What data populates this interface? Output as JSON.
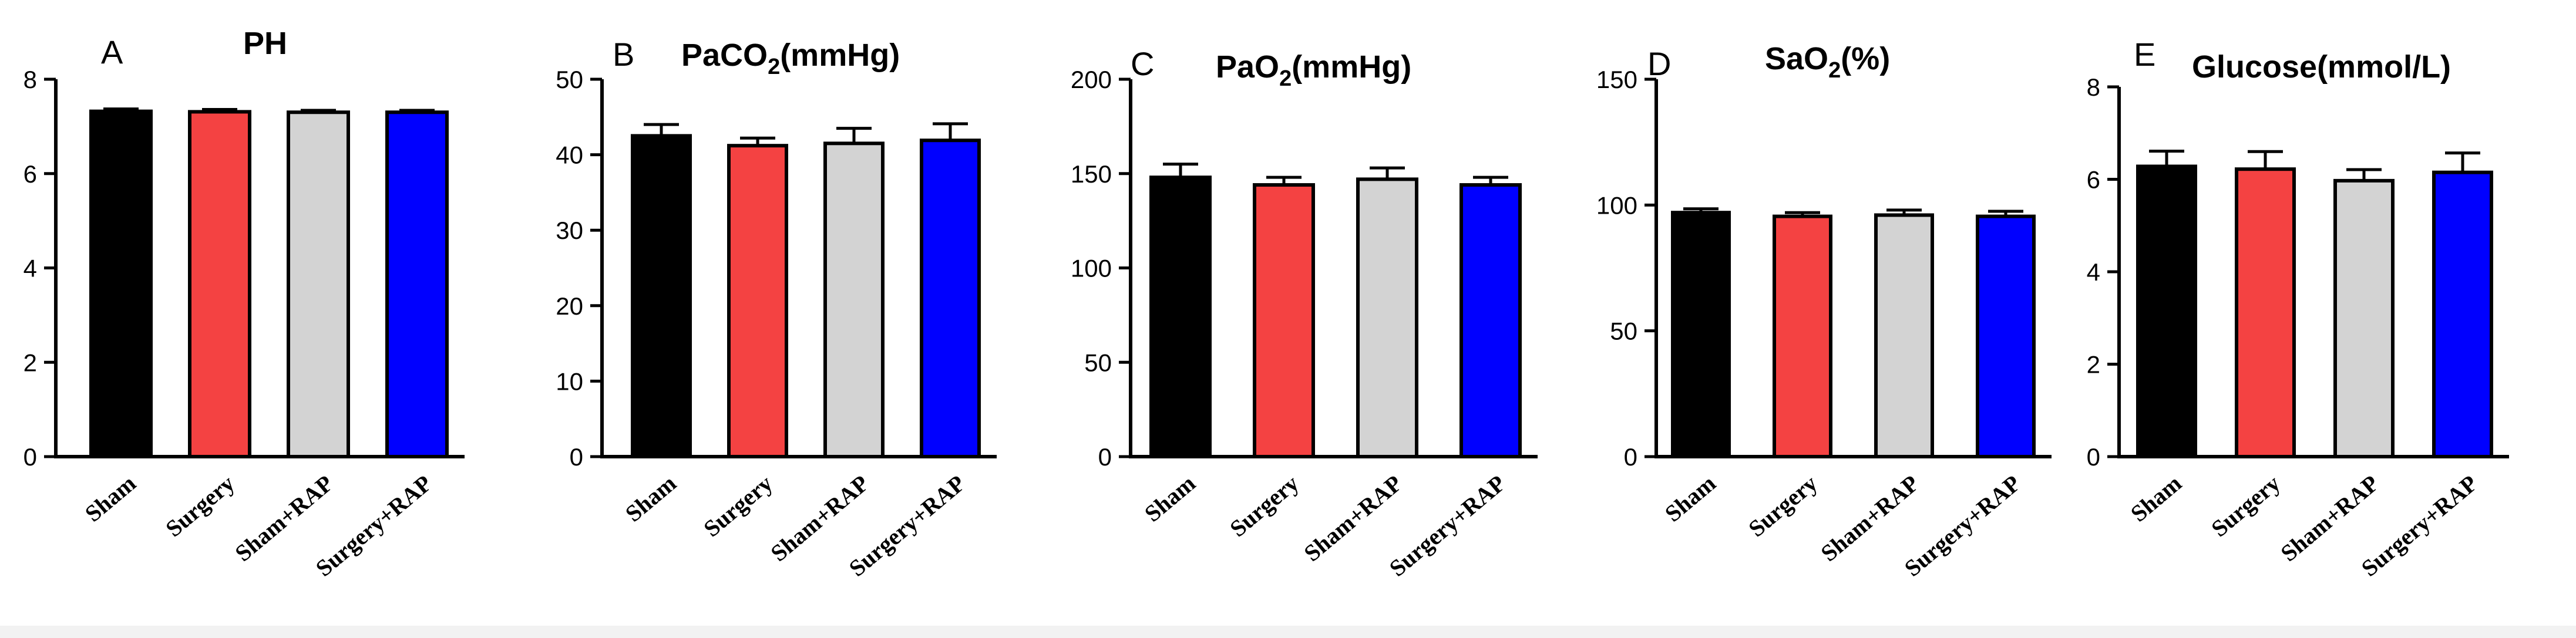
{
  "bar_colors": [
    "#000000",
    "#f44242",
    "#d3d3d3",
    "#0000ff"
  ],
  "chart_data": [
    {
      "type": "bar",
      "letter": "A",
      "title": "PH",
      "title_sub": "",
      "title_suffix": "",
      "categories": [
        "Sham",
        "Surgery",
        "Sham+RAP",
        "Surgery+RAP"
      ],
      "values": [
        7.32,
        7.31,
        7.3,
        7.3
      ],
      "errors": [
        0.05,
        0.05,
        0.04,
        0.04
      ],
      "ylim": [
        0,
        8
      ],
      "yticks": [
        0,
        2,
        4,
        6,
        8
      ],
      "xlabel": "",
      "ylabel": ""
    },
    {
      "type": "bar",
      "letter": "B",
      "title": "PaCO",
      "title_sub": "2",
      "title_suffix": "(mmHg)",
      "categories": [
        "Sham",
        "Surgery",
        "Sham+RAP",
        "Surgery+RAP"
      ],
      "values": [
        42.5,
        41.2,
        41.5,
        41.9
      ],
      "errors": [
        1.5,
        1.0,
        2.0,
        2.2
      ],
      "ylim": [
        0,
        50
      ],
      "yticks": [
        0,
        10,
        20,
        30,
        40,
        50
      ],
      "xlabel": "",
      "ylabel": ""
    },
    {
      "type": "bar",
      "letter": "C",
      "title": "PaO",
      "title_sub": "2",
      "title_suffix": "(mmHg)",
      "categories": [
        "Sham",
        "Surgery",
        "Sham+RAP",
        "Surgery+RAP"
      ],
      "values": [
        148,
        144,
        147,
        144
      ],
      "errors": [
        7,
        4,
        6,
        4
      ],
      "ylim": [
        0,
        200
      ],
      "yticks": [
        0,
        50,
        100,
        150,
        200
      ],
      "xlabel": "",
      "ylabel": ""
    },
    {
      "type": "bar",
      "letter": "D",
      "title": "SaO",
      "title_sub": "2",
      "title_suffix": "(%)",
      "categories": [
        "Sham",
        "Surgery",
        "Sham+RAP",
        "Surgery+RAP"
      ],
      "values": [
        97,
        95.5,
        96,
        95.5
      ],
      "errors": [
        1.5,
        1.5,
        2,
        2
      ],
      "ylim": [
        0,
        150
      ],
      "yticks": [
        0,
        50,
        100,
        150
      ],
      "xlabel": "",
      "ylabel": ""
    },
    {
      "type": "bar",
      "letter": "E",
      "title": "Glucose(mmol/L)",
      "title_sub": "",
      "title_suffix": "",
      "categories": [
        "Sham",
        "Surgery",
        "Sham+RAP",
        "Surgery+RAP"
      ],
      "values": [
        6.28,
        6.22,
        5.97,
        6.15
      ],
      "errors": [
        0.33,
        0.38,
        0.24,
        0.42
      ],
      "ylim": [
        0,
        8
      ],
      "yticks": [
        0,
        2,
        4,
        6,
        8
      ],
      "xlabel": "",
      "ylabel": ""
    }
  ]
}
